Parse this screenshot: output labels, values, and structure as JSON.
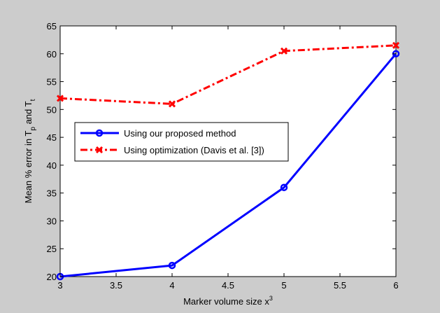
{
  "chart_data": {
    "type": "line",
    "title": "",
    "xlabel": "Marker volume size x",
    "xlabel_sup": "3",
    "ylabel": "Mean % error in T",
    "ylabel_sub1": "p",
    "ylabel_mid": " and T",
    "ylabel_sub2": "t",
    "xlim": [
      3,
      6
    ],
    "ylim": [
      20,
      65
    ],
    "xticks": [
      3,
      3.5,
      4,
      4.5,
      5,
      5.5,
      6
    ],
    "xtick_labels": [
      "3",
      "3.5",
      "4",
      "4.5",
      "5",
      "5.5",
      "6"
    ],
    "yticks": [
      20,
      25,
      30,
      35,
      40,
      45,
      50,
      55,
      60,
      65
    ],
    "ytick_labels": [
      "20",
      "25",
      "30",
      "35",
      "40",
      "45",
      "50",
      "55",
      "60",
      "65"
    ],
    "grid": false,
    "legend_position": "center-left",
    "x": [
      3,
      4,
      5,
      6
    ],
    "series": [
      {
        "name": "Using our proposed method",
        "values": [
          20,
          22,
          36,
          60
        ],
        "color": "#0000ff",
        "line_style": "solid",
        "marker": "circle"
      },
      {
        "name": "Using optimization (Davis et al. [3])",
        "values": [
          52,
          51,
          60.5,
          61.5
        ],
        "color": "#ff0000",
        "line_style": "dash-dot",
        "marker": "x"
      }
    ]
  }
}
